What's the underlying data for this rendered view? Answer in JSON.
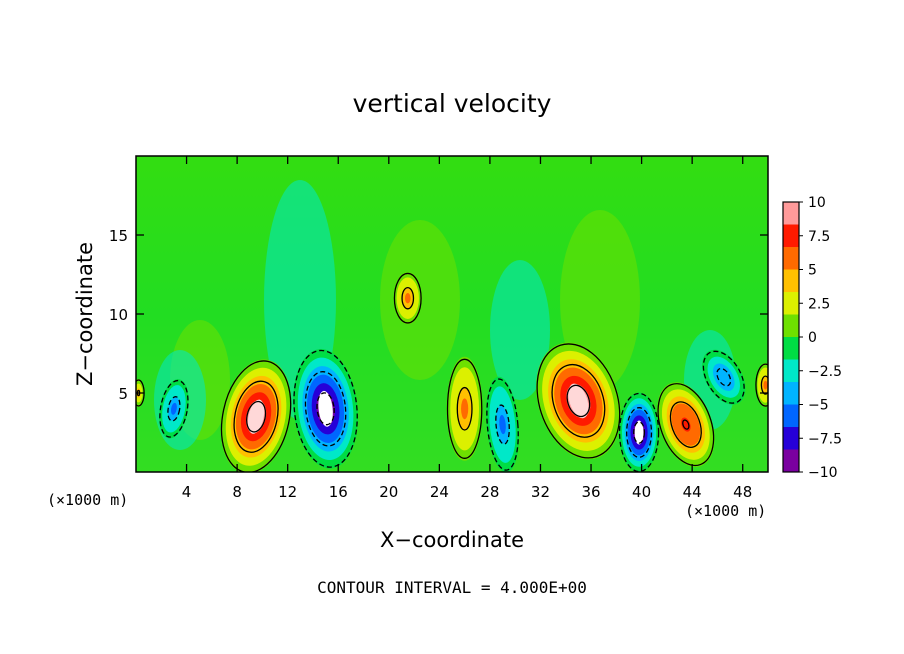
{
  "chart_data": {
    "type": "heatmap",
    "title": "vertical velocity",
    "xlabel": "X−coordinate",
    "ylabel": "Z−coordinate",
    "x_unit_left": "(×1000 m)",
    "x_unit_right": "(×1000 m)",
    "footer": "CONTOUR INTERVAL = 4.000E+00",
    "xlim": [
      0,
      50
    ],
    "ylim": [
      0,
      20
    ],
    "x_ticks": [
      4,
      8,
      12,
      16,
      20,
      24,
      28,
      32,
      36,
      40,
      44,
      48
    ],
    "x_tick_labels": [
      "4",
      "8",
      "12",
      "16",
      "20",
      "24",
      "28",
      "32",
      "36",
      "40",
      "44",
      "48"
    ],
    "y_ticks": [
      5,
      10,
      15
    ],
    "y_tick_labels": [
      "5",
      "10",
      "15"
    ],
    "contour_interval": 4.0,
    "colorbar": {
      "min": -10,
      "max": 10,
      "ticks": [
        10,
        7.5,
        5,
        2.5,
        0,
        -2.5,
        -5,
        -7.5,
        -10
      ],
      "tick_labels": [
        "10",
        "7.5",
        "5",
        "2.5",
        "0",
        "−2.5",
        "−5",
        "−7.5",
        "−10"
      ],
      "colors": [
        "#7a00a0",
        "#2600d8",
        "#0066ff",
        "#00b4ff",
        "#00e8c8",
        "#00dd44",
        "#6ee000",
        "#dcf000",
        "#ffc000",
        "#ff6a00",
        "#ff1a00",
        "#ff9a9a"
      ]
    },
    "features": [
      {
        "x": 9.5,
        "z": 3.5,
        "value": 10
      },
      {
        "x": 15.0,
        "z": 4.0,
        "value": -10
      },
      {
        "x": 21.5,
        "z": 11.0,
        "value": 6
      },
      {
        "x": 26.0,
        "z": 4.0,
        "value": 6
      },
      {
        "x": 29.0,
        "z": 3.0,
        "value": -6
      },
      {
        "x": 35.0,
        "z": 4.5,
        "value": 10
      },
      {
        "x": 39.8,
        "z": 2.5,
        "value": -10
      },
      {
        "x": 43.5,
        "z": 3.0,
        "value": 8
      },
      {
        "x": 3.0,
        "z": 4.0,
        "value": -6
      },
      {
        "x": 46.5,
        "z": 6.0,
        "value": -5
      },
      {
        "x": 49.8,
        "z": 5.5,
        "value": 6
      },
      {
        "x": 0.2,
        "z": 5.0,
        "value": 4
      }
    ],
    "grid": false,
    "legend": "colorbar-right"
  }
}
